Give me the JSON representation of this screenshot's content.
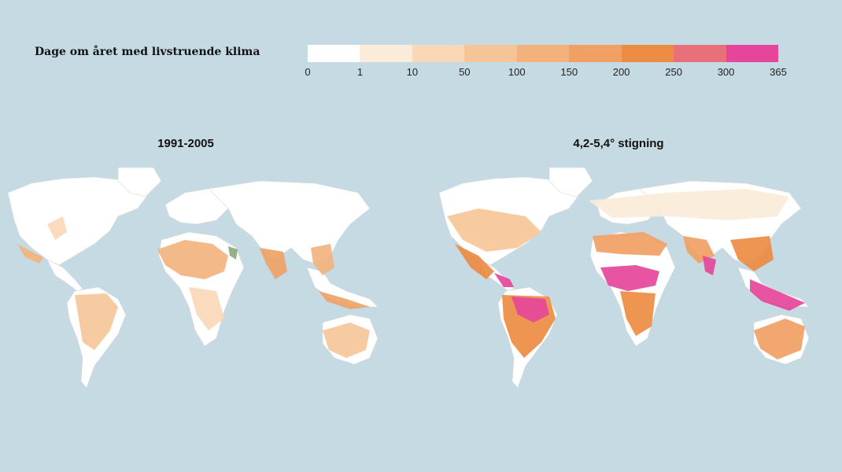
{
  "legend": {
    "title": "Dage om året med livstruende klima",
    "ticks": [
      "0",
      "1",
      "10",
      "50",
      "100",
      "150",
      "200",
      "250",
      "300",
      "365"
    ],
    "colors": [
      "#ffffff",
      "#fbecd9",
      "#f9d7b7",
      "#f6c597",
      "#f3b17c",
      "#f0a063",
      "#ec8c42",
      "#e8707a",
      "#e5469a"
    ]
  },
  "maps": [
    {
      "title": "1991-2005"
    },
    {
      "title": "4,2-5,4° stigning"
    }
  ]
}
